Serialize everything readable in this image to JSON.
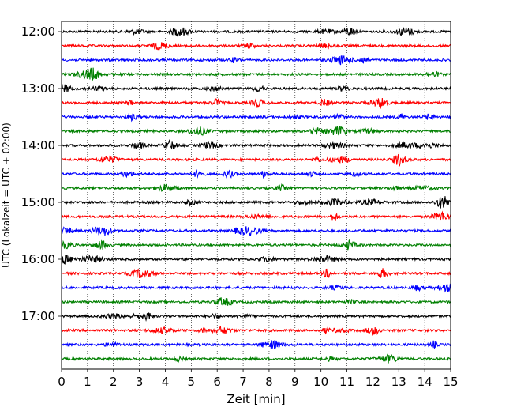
{
  "chart_data": {
    "type": "line",
    "title": "",
    "xlabel": "Zeit  [min]",
    "ylabel": "UTC (Lokalzeit = UTC + 02:00)",
    "xlim": [
      0,
      15
    ],
    "x_ticks": [
      "0",
      "1",
      "2",
      "3",
      "4",
      "5",
      "6",
      "7",
      "8",
      "9",
      "10",
      "11",
      "12",
      "13",
      "14",
      "15"
    ],
    "y_tick_labels": [
      "12:00",
      "13:00",
      "14:00",
      "15:00",
      "16:00",
      "17:00"
    ],
    "grid": "vertical dotted lines at each minute",
    "trace_color_cycle": [
      "#000000",
      "#ff0000",
      "#0000ff",
      "#008000"
    ],
    "traces": [
      {
        "start": "12:00",
        "color": "#000000"
      },
      {
        "start": "12:15",
        "color": "#ff0000"
      },
      {
        "start": "12:30",
        "color": "#0000ff"
      },
      {
        "start": "12:45",
        "color": "#008000"
      },
      {
        "start": "13:00",
        "color": "#000000"
      },
      {
        "start": "13:15",
        "color": "#ff0000"
      },
      {
        "start": "13:30",
        "color": "#0000ff"
      },
      {
        "start": "13:45",
        "color": "#008000"
      },
      {
        "start": "14:00",
        "color": "#000000"
      },
      {
        "start": "14:15",
        "color": "#ff0000"
      },
      {
        "start": "14:30",
        "color": "#0000ff"
      },
      {
        "start": "14:45",
        "color": "#008000"
      },
      {
        "start": "15:00",
        "color": "#000000"
      },
      {
        "start": "15:15",
        "color": "#ff0000"
      },
      {
        "start": "15:30",
        "color": "#0000ff"
      },
      {
        "start": "15:45",
        "color": "#008000"
      },
      {
        "start": "16:00",
        "color": "#000000"
      },
      {
        "start": "16:15",
        "color": "#ff0000"
      },
      {
        "start": "16:30",
        "color": "#0000ff"
      },
      {
        "start": "16:45",
        "color": "#008000"
      },
      {
        "start": "17:00",
        "color": "#000000"
      },
      {
        "start": "17:15",
        "color": "#ff0000"
      },
      {
        "start": "17:30",
        "color": "#0000ff"
      },
      {
        "start": "17:45",
        "color": "#008000"
      }
    ]
  }
}
